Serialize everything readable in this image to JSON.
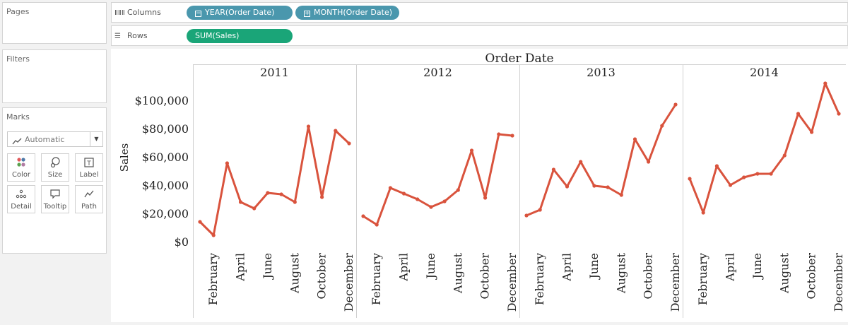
{
  "left_panel": {
    "pages": {
      "title": "Pages"
    },
    "filters": {
      "title": "Filters"
    },
    "marks": {
      "title": "Marks",
      "mark_type": "Automatic",
      "buttons": [
        {
          "label": "Color",
          "icon": "color-dots-icon"
        },
        {
          "label": "Size",
          "icon": "size-icon"
        },
        {
          "label": "Label",
          "icon": "label-icon"
        },
        {
          "label": "Detail",
          "icon": "detail-icon"
        },
        {
          "label": "Tooltip",
          "icon": "tooltip-icon"
        },
        {
          "label": "Path",
          "icon": "path-icon"
        }
      ]
    }
  },
  "shelves": {
    "columns": {
      "label": "Columns",
      "pills": [
        {
          "label": "YEAR(Order Date)",
          "toggle": "−"
        },
        {
          "label": "MONTH(Order Date)",
          "toggle": "+"
        }
      ]
    },
    "rows": {
      "label": "Rows",
      "pills": [
        {
          "label": "SUM(Sales)"
        }
      ]
    }
  },
  "colors": {
    "line": "#d9533d",
    "pill_dimension": "#4a97ad",
    "pill_measure": "#1aa578"
  },
  "chart_data": {
    "type": "line",
    "header_title": "Order Date",
    "ylabel": "Sales",
    "ylim": [
      0,
      115000
    ],
    "y_ticks": [
      "$0",
      "$20,000",
      "$40,000",
      "$60,000",
      "$80,000",
      "$100,000"
    ],
    "y_tick_values": [
      0,
      20000,
      40000,
      60000,
      80000,
      100000
    ],
    "month_tick_labels": [
      "February",
      "April",
      "June",
      "August",
      "October",
      "December"
    ],
    "month_tick_indices": [
      1,
      3,
      5,
      7,
      9,
      11
    ],
    "panels": [
      {
        "year": "2011",
        "values": [
          14000,
          4500,
          55500,
          28000,
          23500,
          34500,
          33500,
          28000,
          81500,
          31500,
          78500,
          69500
        ]
      },
      {
        "year": "2012",
        "values": [
          18000,
          12000,
          38000,
          34000,
          30000,
          24500,
          28500,
          36500,
          64500,
          31000,
          76000,
          75000
        ]
      },
      {
        "year": "2013",
        "values": [
          18500,
          22500,
          51000,
          39000,
          56500,
          39500,
          38500,
          33000,
          72500,
          56500,
          82000,
          97000
        ]
      },
      {
        "year": "2014",
        "values": [
          44500,
          20500,
          53500,
          40000,
          45500,
          48000,
          48000,
          61000,
          90500,
          77500,
          112000,
          90500
        ]
      }
    ]
  }
}
